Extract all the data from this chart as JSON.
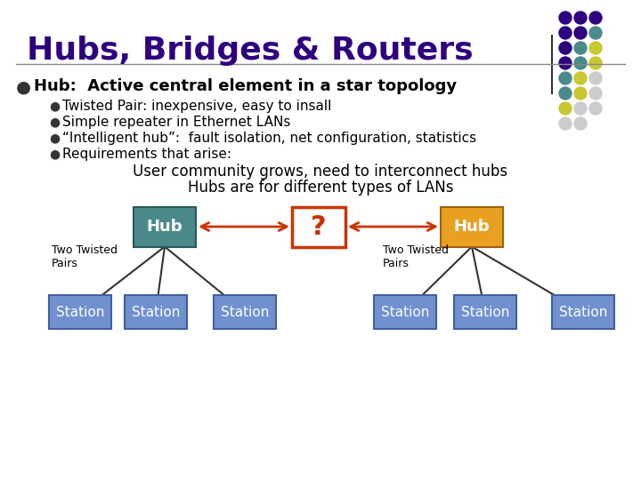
{
  "title": "Hubs, Bridges & Routers",
  "title_color": "#2E0080",
  "bg_color": "#FFFFFF",
  "bullet_main": "Hub:  Active central element in a star topology",
  "bullets": [
    "Twisted Pair: inexpensive, easy to insall",
    "Simple repeater in Ethernet LANs",
    "“Intelligent hub”:  fault isolation, net configuration, statistics",
    "Requirements that arise:"
  ],
  "center_text1": "User community grows, need to interconnect hubs",
  "center_text2": "Hubs are for different types of LANs",
  "hub_left_color": "#4A8A8A",
  "hub_right_color": "#E8A020",
  "station_color": "#7090D0",
  "question_border": "#CC3300",
  "arrow_color": "#CC3300",
  "dot_colors": [
    "#2E0080",
    "#2E0080",
    "#2E0080",
    "#2E0080",
    "#4A8A8A",
    "#C8C830",
    "#4A8A8A",
    "#C8C830",
    "#CCCCCC"
  ],
  "line_color": "#333333"
}
